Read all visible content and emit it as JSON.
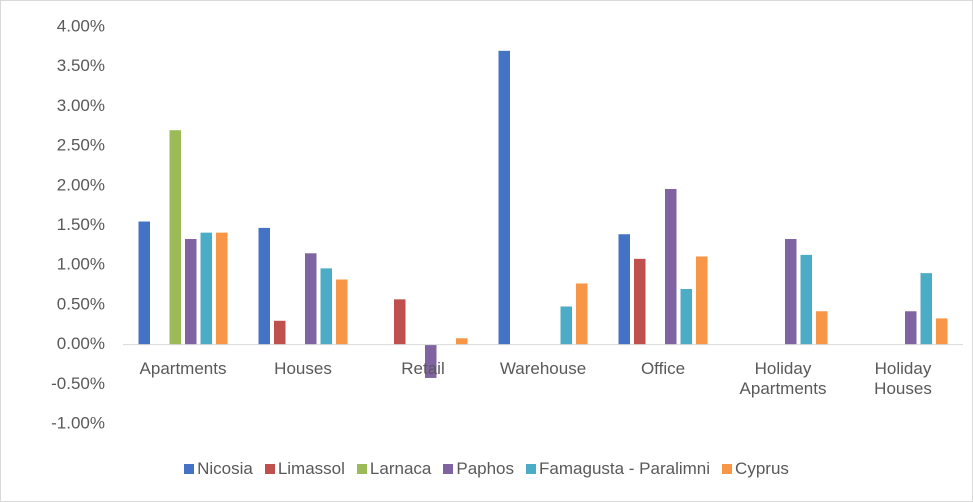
{
  "chart_data": {
    "type": "bar",
    "categories": [
      "Apartments",
      "Houses",
      "Retail",
      "Warehouse",
      "Office",
      "Holiday Apartments",
      "Holiday Houses"
    ],
    "series": [
      {
        "name": "Nicosia",
        "color": "#4472c4",
        "values": [
          1.55,
          1.47,
          null,
          3.7,
          1.39,
          null,
          null
        ]
      },
      {
        "name": "Limassol",
        "color": "#c0504d",
        "values": [
          null,
          0.3,
          0.57,
          null,
          1.08,
          null,
          null
        ]
      },
      {
        "name": "Larnaca",
        "color": "#9bbb59",
        "values": [
          2.7,
          null,
          null,
          null,
          null,
          null,
          null
        ]
      },
      {
        "name": "Paphos",
        "color": "#8064a2",
        "values": [
          1.33,
          1.15,
          -0.42,
          null,
          1.96,
          1.33,
          0.42
        ]
      },
      {
        "name": "Famagusta - Paralimni",
        "color": "#4bacc6",
        "values": [
          1.41,
          0.96,
          null,
          0.48,
          0.7,
          1.13,
          0.9
        ]
      },
      {
        "name": "Cyprus",
        "color": "#f79646",
        "values": [
          1.41,
          0.82,
          0.08,
          0.77,
          1.11,
          0.42,
          0.33
        ]
      }
    ],
    "ylim": [
      -1,
      4
    ],
    "yticks": [
      {
        "value": -1,
        "label": "-1.00%"
      },
      {
        "value": -0.5,
        "label": "-0.50%"
      },
      {
        "value": 0,
        "label": "0.00%"
      },
      {
        "value": 0.5,
        "label": "0.50%"
      },
      {
        "value": 1,
        "label": "1.00%"
      },
      {
        "value": 1.5,
        "label": "1.50%"
      },
      {
        "value": 2,
        "label": "2.00%"
      },
      {
        "value": 2.5,
        "label": "2.50%"
      },
      {
        "value": 3,
        "label": "3.00%"
      },
      {
        "value": 3.5,
        "label": "3.50%"
      },
      {
        "value": 4,
        "label": "4.00%"
      }
    ],
    "grid": false,
    "legend": "bottom"
  }
}
